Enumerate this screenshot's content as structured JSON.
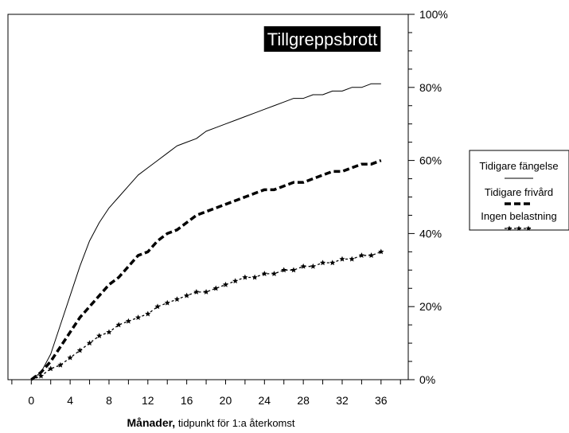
{
  "chart_data": {
    "type": "line",
    "title": "Tillgreppsbrott",
    "xlabel_bold": "Månader,",
    "xlabel_rest": " tidpunkt för 1:a återkomst",
    "ylabel": "",
    "xlim": [
      -2.4,
      38.8
    ],
    "ylim": [
      0,
      100
    ],
    "x_ticks": [
      0,
      4,
      8,
      12,
      16,
      20,
      24,
      28,
      32,
      36
    ],
    "y_ticks": [
      0,
      20,
      40,
      60,
      80,
      100
    ],
    "y_tick_labels": [
      "0%",
      "20%",
      "40%",
      "60%",
      "80%",
      "100%"
    ],
    "y_axis_side": "right",
    "grid": false,
    "legend_position": "right",
    "x": [
      0,
      1,
      2,
      3,
      4,
      5,
      6,
      7,
      8,
      9,
      10,
      11,
      12,
      13,
      14,
      15,
      16,
      17,
      18,
      19,
      20,
      21,
      22,
      23,
      24,
      25,
      26,
      27,
      28,
      29,
      30,
      31,
      32,
      33,
      34,
      35,
      36
    ],
    "series": [
      {
        "name": "Tidigare fängelse",
        "style": "solid",
        "values": [
          0,
          2,
          7,
          15,
          23,
          31,
          38,
          43,
          47,
          50,
          53,
          56,
          58,
          60,
          62,
          64,
          65,
          66,
          68,
          69,
          70,
          71,
          72,
          73,
          74,
          75,
          76,
          77,
          77,
          78,
          78,
          79,
          79,
          80,
          80,
          81,
          81
        ]
      },
      {
        "name": "Tidigare frivård",
        "style": "thick-dashed",
        "values": [
          0,
          2,
          5,
          9,
          13,
          17,
          20,
          23,
          26,
          28,
          31,
          34,
          35,
          38,
          40,
          41,
          43,
          45,
          46,
          47,
          48,
          49,
          50,
          51,
          52,
          52,
          53,
          54,
          54,
          55,
          56,
          57,
          57,
          58,
          59,
          59,
          60
        ]
      },
      {
        "name": "Ingen belastning",
        "style": "dotted-star",
        "values": [
          0,
          1,
          3,
          4,
          6,
          8,
          10,
          12,
          13,
          15,
          16,
          17,
          18,
          20,
          21,
          22,
          23,
          24,
          24,
          25,
          26,
          27,
          28,
          28,
          29,
          29,
          30,
          30,
          31,
          31,
          32,
          32,
          33,
          33,
          34,
          34,
          35
        ]
      }
    ]
  },
  "colors": {
    "line": "#000000",
    "title_bg": "#000000",
    "title_fg": "#ffffff",
    "background": "#ffffff"
  }
}
